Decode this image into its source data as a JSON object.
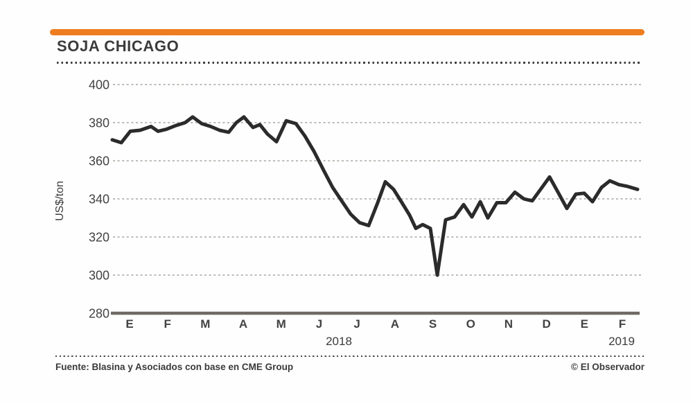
{
  "page": {
    "title": "SOJA CHICAGO",
    "source": "Fuente: Blasina y Asociados con base en CME Group",
    "credit": "© El Observador"
  },
  "colors": {
    "accent": "#ee7d1f",
    "line": "#2b2b2b",
    "axis": "#6f6a65",
    "gridline": "#a9a49e",
    "title_text": "#3b3b3b",
    "tick_text": "#424242"
  },
  "chart_data": {
    "type": "line",
    "title": "SOJA CHICAGO",
    "xlabel": "",
    "ylabel": "US$/ton",
    "ylim": [
      280,
      400
    ],
    "y_ticks": [
      400,
      380,
      360,
      340,
      320,
      300,
      280
    ],
    "x_ticks": [
      "E",
      "F",
      "M",
      "A",
      "M",
      "J",
      "J",
      "A",
      "S",
      "O",
      "N",
      "D",
      "E",
      "F"
    ],
    "years": [
      {
        "label": "2018",
        "x": 489
      },
      {
        "label": "2019",
        "x": 897
      }
    ],
    "grid": "horizontal dashed",
    "legend_position": "none",
    "series": [
      {
        "name": "Soja Chicago",
        "unit": "US$/ton",
        "points": [
          [
            162,
            371
          ],
          [
            175,
            369.5
          ],
          [
            188,
            375.5
          ],
          [
            202,
            376
          ],
          [
            218,
            378
          ],
          [
            228,
            375.5
          ],
          [
            240,
            376.5
          ],
          [
            254,
            378.5
          ],
          [
            267,
            380
          ],
          [
            278,
            383
          ],
          [
            291,
            379.5
          ],
          [
            304,
            378
          ],
          [
            317,
            376
          ],
          [
            330,
            375
          ],
          [
            341,
            380
          ],
          [
            352,
            383
          ],
          [
            365,
            377.5
          ],
          [
            375,
            379
          ],
          [
            386,
            374
          ],
          [
            399,
            370
          ],
          [
            413,
            381
          ],
          [
            427,
            379.5
          ],
          [
            440,
            373
          ],
          [
            453,
            365
          ],
          [
            467,
            355
          ],
          [
            480,
            346
          ],
          [
            493,
            339
          ],
          [
            506,
            332
          ],
          [
            519,
            327.5
          ],
          [
            532,
            326
          ],
          [
            545,
            338
          ],
          [
            556,
            349
          ],
          [
            568,
            345
          ],
          [
            580,
            338
          ],
          [
            591,
            331.5
          ],
          [
            600,
            324.5
          ],
          [
            610,
            326.5
          ],
          [
            621,
            324.5
          ],
          [
            631,
            300
          ],
          [
            643,
            329
          ],
          [
            656,
            330.5
          ],
          [
            669,
            337
          ],
          [
            681,
            330.5
          ],
          [
            693,
            338.5
          ],
          [
            704,
            330
          ],
          [
            717,
            338
          ],
          [
            730,
            338
          ],
          [
            743,
            343.5
          ],
          [
            756,
            340
          ],
          [
            768,
            339
          ],
          [
            780,
            345
          ],
          [
            793,
            351.5
          ],
          [
            806,
            343
          ],
          [
            818,
            335
          ],
          [
            831,
            342.5
          ],
          [
            843,
            343
          ],
          [
            855,
            338.5
          ],
          [
            868,
            346
          ],
          [
            880,
            349.5
          ],
          [
            893,
            347.5
          ],
          [
            906,
            346.5
          ],
          [
            920,
            345
          ]
        ]
      }
    ]
  }
}
